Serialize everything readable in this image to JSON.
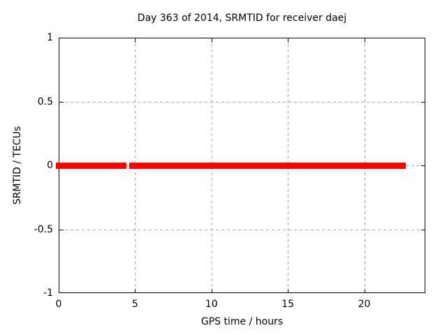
{
  "window": {
    "background": "#ffffff"
  },
  "chart_data": {
    "type": "scatter",
    "title": "Day 363 of 2014, SRMTID for receiver daej",
    "xlabel": "GPS time / hours",
    "ylabel": "SRMTID / TECUs",
    "xlim": [
      0,
      24
    ],
    "ylim": [
      -1,
      1
    ],
    "xticks": [
      {
        "value": 0,
        "label": "0"
      },
      {
        "value": 5,
        "label": "5"
      },
      {
        "value": 10,
        "label": "10"
      },
      {
        "value": 15,
        "label": "15"
      },
      {
        "value": 20,
        "label": "20"
      }
    ],
    "yticks": [
      {
        "value": -1,
        "label": "-1"
      },
      {
        "value": -0.5,
        "label": "-0.5"
      },
      {
        "value": 0,
        "label": "0"
      },
      {
        "value": 0.5,
        "label": "0.5"
      },
      {
        "value": 1,
        "label": "1"
      }
    ],
    "grid": {
      "enabled": true,
      "color": "#a8a8a8",
      "style": "dashed"
    },
    "legend": "none",
    "axis_color": "#000000",
    "series": [
      {
        "name": "SRMTID",
        "color": "#ff0000",
        "marker": "filled-square",
        "marker_size_px": 9,
        "y_value": 0,
        "segments_hours": [
          [
            0,
            4.27
          ],
          [
            4.8,
            22.55
          ]
        ]
      }
    ]
  }
}
